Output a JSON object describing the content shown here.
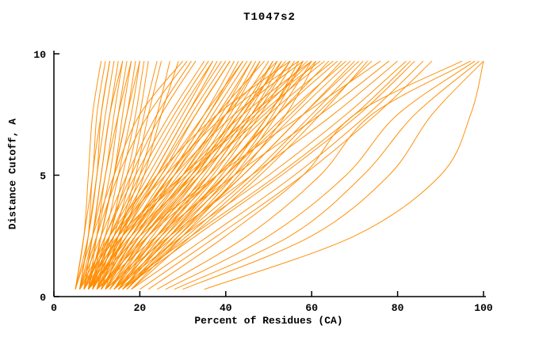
{
  "chart_data": {
    "type": "line",
    "title": "T1047s2",
    "xlabel": "Percent of Residues (CA)",
    "ylabel": "Distance Cutoff, A",
    "xlim": [
      0,
      100
    ],
    "ylim": [
      0,
      10
    ],
    "xticks": [
      0,
      20,
      40,
      60,
      80,
      100
    ],
    "yticks": [
      0,
      5,
      10
    ],
    "grid": false,
    "legend": "none",
    "line_color": "#ff8c00",
    "axis_color": "#000000",
    "background_color": "#ffffff",
    "y_levels": [
      0.3,
      2.5,
      5,
      7.5,
      9.7
    ],
    "curves": [
      [
        5,
        7,
        9,
        10,
        12
      ],
      [
        5,
        8,
        10,
        11,
        13
      ],
      [
        6,
        8,
        10,
        12,
        14
      ],
      [
        6,
        9,
        11,
        13,
        15
      ],
      [
        7,
        9,
        12,
        14,
        16
      ],
      [
        7,
        10,
        13,
        15,
        17
      ],
      [
        8,
        11,
        14,
        16,
        18
      ],
      [
        8,
        11,
        14,
        17,
        19
      ],
      [
        9,
        12,
        15,
        18,
        20
      ],
      [
        9,
        13,
        16,
        19,
        21
      ],
      [
        10,
        13,
        17,
        20,
        22
      ],
      [
        10,
        14,
        18,
        21,
        24
      ],
      [
        11,
        15,
        19,
        22,
        25
      ],
      [
        11,
        15,
        20,
        24,
        27
      ],
      [
        12,
        16,
        21,
        25,
        29
      ],
      [
        5,
        7,
        8,
        9,
        11
      ],
      [
        6,
        8,
        9,
        11,
        13
      ],
      [
        7,
        9,
        11,
        13,
        16
      ],
      [
        8,
        10,
        12,
        15,
        18
      ],
      [
        9,
        11,
        14,
        17,
        20
      ],
      [
        5,
        9,
        14,
        20,
        30
      ],
      [
        6,
        10,
        15,
        22,
        31
      ],
      [
        6,
        11,
        17,
        24,
        32
      ],
      [
        7,
        12,
        18,
        25,
        33
      ],
      [
        7,
        12,
        19,
        27,
        35
      ],
      [
        8,
        13,
        20,
        28,
        36
      ],
      [
        8,
        14,
        22,
        30,
        37
      ],
      [
        9,
        15,
        23,
        31,
        38
      ],
      [
        9,
        16,
        24,
        32,
        40
      ],
      [
        10,
        16,
        25,
        33,
        41
      ],
      [
        10,
        17,
        26,
        35,
        42
      ],
      [
        11,
        18,
        27,
        36,
        43
      ],
      [
        11,
        19,
        28,
        37,
        45
      ],
      [
        12,
        20,
        30,
        39,
        46
      ],
      [
        12,
        20,
        31,
        40,
        47
      ],
      [
        13,
        21,
        32,
        41,
        48
      ],
      [
        13,
        22,
        33,
        42,
        50
      ],
      [
        14,
        23,
        34,
        44,
        51
      ],
      [
        14,
        24,
        35,
        45,
        52
      ],
      [
        15,
        25,
        36,
        46,
        53
      ],
      [
        15,
        25,
        37,
        47,
        55
      ],
      [
        16,
        26,
        38,
        48,
        56
      ],
      [
        16,
        27,
        39,
        50,
        57
      ],
      [
        17,
        28,
        41,
        51,
        58
      ],
      [
        17,
        29,
        42,
        52,
        60
      ],
      [
        18,
        30,
        43,
        54,
        61
      ],
      [
        8,
        15,
        25,
        35,
        44
      ],
      [
        9,
        17,
        27,
        38,
        49
      ],
      [
        10,
        18,
        29,
        40,
        52
      ],
      [
        11,
        20,
        32,
        43,
        54
      ],
      [
        7,
        13,
        21,
        29,
        37
      ],
      [
        8,
        14,
        23,
        31,
        39
      ],
      [
        9,
        15,
        24,
        33,
        41
      ],
      [
        10,
        17,
        27,
        36,
        44
      ],
      [
        11,
        18,
        28,
        38,
        46
      ],
      [
        12,
        19,
        30,
        40,
        48
      ],
      [
        13,
        21,
        33,
        43,
        51
      ],
      [
        14,
        22,
        34,
        44,
        53
      ],
      [
        15,
        24,
        36,
        46,
        55
      ],
      [
        16,
        27,
        40,
        50,
        58
      ],
      [
        6,
        13,
        24,
        38,
        55
      ],
      [
        7,
        14,
        26,
        40,
        57
      ],
      [
        8,
        16,
        28,
        42,
        58
      ],
      [
        9,
        17,
        30,
        44,
        60
      ],
      [
        10,
        19,
        32,
        46,
        62
      ],
      [
        11,
        21,
        34,
        48,
        63
      ],
      [
        12,
        22,
        36,
        50,
        65
      ],
      [
        13,
        24,
        38,
        52,
        66
      ],
      [
        14,
        26,
        40,
        54,
        68
      ],
      [
        15,
        27,
        42,
        56,
        69
      ],
      [
        16,
        29,
        44,
        58,
        70
      ],
      [
        17,
        30,
        46,
        60,
        72
      ],
      [
        18,
        32,
        48,
        62,
        73
      ],
      [
        12,
        25,
        40,
        55,
        67
      ],
      [
        14,
        28,
        44,
        58,
        71
      ],
      [
        16,
        31,
        47,
        61,
        74
      ],
      [
        10,
        22,
        38,
        52,
        64
      ],
      [
        8,
        18,
        33,
        49,
        61
      ],
      [
        6,
        15,
        30,
        46,
        59
      ],
      [
        7,
        16,
        31,
        47,
        60
      ],
      [
        8,
        20,
        38,
        58,
        76
      ],
      [
        10,
        24,
        42,
        62,
        78
      ],
      [
        12,
        27,
        46,
        65,
        80
      ],
      [
        14,
        30,
        50,
        68,
        82
      ],
      [
        16,
        33,
        53,
        71,
        84
      ],
      [
        18,
        36,
        56,
        73,
        86
      ],
      [
        20,
        38,
        58,
        75,
        88
      ],
      [
        15,
        32,
        52,
        70,
        83
      ],
      [
        22,
        40,
        58,
        70,
        95
      ],
      [
        24,
        45,
        62,
        74,
        97
      ],
      [
        26,
        50,
        68,
        80,
        98
      ],
      [
        28,
        55,
        72,
        84,
        99
      ],
      [
        30,
        60,
        78,
        88,
        100
      ],
      [
        35,
        70,
        90,
        97,
        100
      ]
    ]
  }
}
